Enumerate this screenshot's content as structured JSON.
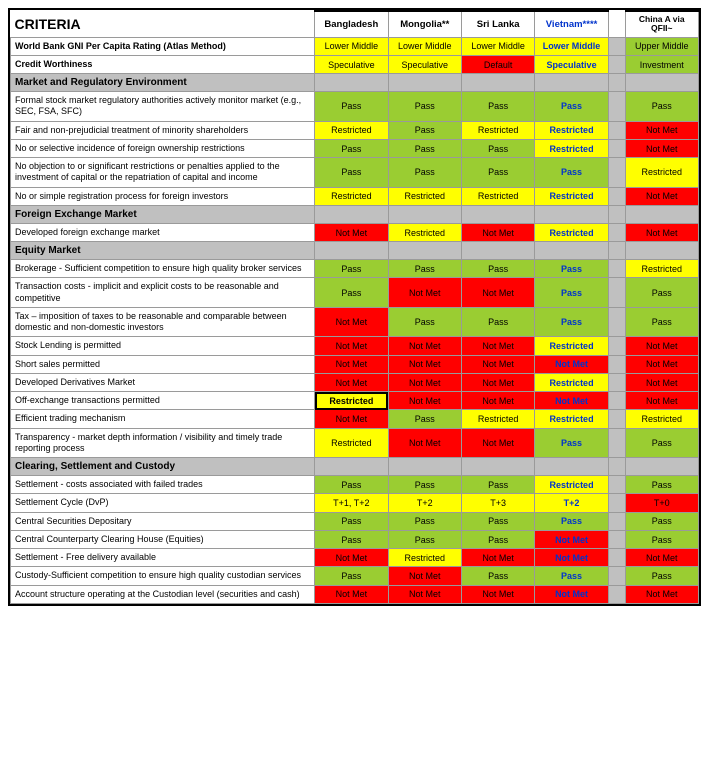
{
  "colors": {
    "green": "#9acd32",
    "yellow": "#ffff00",
    "red": "#ff0000",
    "grey": "#c0c0c0",
    "white": "#ffffff",
    "black": "#000000",
    "blue": "#0033cc"
  },
  "header": {
    "criteria": "CRITERIA",
    "countries": [
      "Bangladesh",
      "Mongolia**",
      "Sri Lanka",
      "Vietnam****"
    ],
    "china": "China A via QFII~",
    "vietnamBlue": true
  },
  "rows": [
    {
      "type": "data",
      "label": "World Bank GNI Per Capita Rating (Atlas Method)",
      "bold": true,
      "cells": [
        {
          "t": "Lower Middle",
          "bg": "yellow"
        },
        {
          "t": "Lower Middle",
          "bg": "yellow"
        },
        {
          "t": "Lower Middle",
          "bg": "yellow"
        },
        {
          "t": "Lower Middle",
          "bg": "yellow",
          "fc": "blue",
          "b": true
        }
      ],
      "china": {
        "t": "Upper Middle",
        "bg": "green"
      }
    },
    {
      "type": "data",
      "label": "Credit Worthiness",
      "bold": true,
      "cells": [
        {
          "t": "Speculative",
          "bg": "yellow"
        },
        {
          "t": "Speculative",
          "bg": "yellow"
        },
        {
          "t": "Default",
          "bg": "red"
        },
        {
          "t": "Speculative",
          "bg": "yellow",
          "fc": "blue",
          "b": true
        }
      ],
      "china": {
        "t": "Investment",
        "bg": "green"
      }
    },
    {
      "type": "section",
      "label": "Market and Regulatory Environment"
    },
    {
      "type": "data",
      "label": "Formal stock market regulatory authorities actively monitor market (e.g., SEC, FSA, SFC)",
      "cells": [
        {
          "t": "Pass",
          "bg": "green"
        },
        {
          "t": "Pass",
          "bg": "green"
        },
        {
          "t": "Pass",
          "bg": "green"
        },
        {
          "t": "Pass",
          "bg": "green",
          "fc": "blue",
          "b": true
        }
      ],
      "china": {
        "t": "Pass",
        "bg": "green"
      }
    },
    {
      "type": "data",
      "label": "Fair and non-prejudicial treatment of minority shareholders",
      "cells": [
        {
          "t": "Restricted",
          "bg": "yellow"
        },
        {
          "t": "Pass",
          "bg": "green"
        },
        {
          "t": "Restricted",
          "bg": "yellow"
        },
        {
          "t": "Restricted",
          "bg": "yellow",
          "fc": "blue",
          "b": true
        }
      ],
      "china": {
        "t": "Not Met",
        "bg": "red"
      }
    },
    {
      "type": "data",
      "label": "No or selective incidence of foreign ownership restrictions",
      "cells": [
        {
          "t": "Pass",
          "bg": "green"
        },
        {
          "t": "Pass",
          "bg": "green"
        },
        {
          "t": "Pass",
          "bg": "green"
        },
        {
          "t": "Restricted",
          "bg": "yellow",
          "fc": "blue",
          "b": true
        }
      ],
      "china": {
        "t": "Not Met",
        "bg": "red"
      }
    },
    {
      "type": "data",
      "label": "No objection to or significant restrictions or penalties applied to the investment of capital or the repatriation of capital and income",
      "cells": [
        {
          "t": "Pass",
          "bg": "green"
        },
        {
          "t": "Pass",
          "bg": "green"
        },
        {
          "t": "Pass",
          "bg": "green"
        },
        {
          "t": "Pass",
          "bg": "green",
          "fc": "blue",
          "b": true
        }
      ],
      "china": {
        "t": "Restricted",
        "bg": "yellow"
      }
    },
    {
      "type": "data",
      "label": "No or simple registration process for foreign investors",
      "cells": [
        {
          "t": "Restricted",
          "bg": "yellow"
        },
        {
          "t": "Restricted",
          "bg": "yellow"
        },
        {
          "t": "Restricted",
          "bg": "yellow"
        },
        {
          "t": "Restricted",
          "bg": "yellow",
          "fc": "blue",
          "b": true
        }
      ],
      "china": {
        "t": "Not Met",
        "bg": "red"
      }
    },
    {
      "type": "section",
      "label": "Foreign Exchange Market"
    },
    {
      "type": "data",
      "label": "Developed foreign exchange market",
      "cells": [
        {
          "t": "Not Met",
          "bg": "red"
        },
        {
          "t": "Restricted",
          "bg": "yellow"
        },
        {
          "t": "Not Met",
          "bg": "red"
        },
        {
          "t": "Restricted",
          "bg": "yellow",
          "fc": "blue",
          "b": true
        }
      ],
      "china": {
        "t": "Not Met",
        "bg": "red"
      }
    },
    {
      "type": "section",
      "label": "Equity Market"
    },
    {
      "type": "data",
      "label": "Brokerage - Sufficient competition to ensure high quality broker services",
      "cells": [
        {
          "t": "Pass",
          "bg": "green"
        },
        {
          "t": "Pass",
          "bg": "green"
        },
        {
          "t": "Pass",
          "bg": "green"
        },
        {
          "t": "Pass",
          "bg": "green",
          "fc": "blue",
          "b": true
        }
      ],
      "china": {
        "t": "Restricted",
        "bg": "yellow"
      }
    },
    {
      "type": "data",
      "label": "Transaction costs - implicit and explicit costs to be reasonable and competitive",
      "cells": [
        {
          "t": "Pass",
          "bg": "green"
        },
        {
          "t": "Not Met",
          "bg": "red"
        },
        {
          "t": "Not Met",
          "bg": "red"
        },
        {
          "t": "Pass",
          "bg": "green",
          "fc": "blue",
          "b": true
        }
      ],
      "china": {
        "t": "Pass",
        "bg": "green"
      }
    },
    {
      "type": "data",
      "label": "Tax – imposition of taxes to be reasonable and comparable between domestic and non-domestic investors",
      "cells": [
        {
          "t": "Not Met",
          "bg": "red"
        },
        {
          "t": "Pass",
          "bg": "green"
        },
        {
          "t": "Pass",
          "bg": "green"
        },
        {
          "t": "Pass",
          "bg": "green",
          "fc": "blue",
          "b": true
        }
      ],
      "china": {
        "t": "Pass",
        "bg": "green"
      }
    },
    {
      "type": "data",
      "label": "Stock Lending is permitted",
      "cells": [
        {
          "t": "Not Met",
          "bg": "red"
        },
        {
          "t": "Not Met",
          "bg": "red"
        },
        {
          "t": "Not Met",
          "bg": "red"
        },
        {
          "t": "Restricted",
          "bg": "yellow",
          "fc": "blue",
          "b": true
        }
      ],
      "china": {
        "t": "Not Met",
        "bg": "red"
      }
    },
    {
      "type": "data",
      "label": "Short sales permitted",
      "cells": [
        {
          "t": "Not Met",
          "bg": "red"
        },
        {
          "t": "Not Met",
          "bg": "red"
        },
        {
          "t": "Not Met",
          "bg": "red"
        },
        {
          "t": "Not Met",
          "bg": "red",
          "fc": "blue",
          "b": true
        }
      ],
      "china": {
        "t": "Not Met",
        "bg": "red"
      }
    },
    {
      "type": "data",
      "label": "Developed Derivatives Market",
      "cells": [
        {
          "t": "Not Met",
          "bg": "red"
        },
        {
          "t": "Not Met",
          "bg": "red"
        },
        {
          "t": "Not Met",
          "bg": "red"
        },
        {
          "t": "Restricted",
          "bg": "yellow",
          "fc": "blue",
          "b": true
        }
      ],
      "china": {
        "t": "Not Met",
        "bg": "red"
      }
    },
    {
      "type": "data",
      "label": "Off-exchange transactions permitted",
      "cells": [
        {
          "t": "Restricted",
          "bg": "yellow",
          "hl": true,
          "b": true
        },
        {
          "t": "Not Met",
          "bg": "red"
        },
        {
          "t": "Not Met",
          "bg": "red"
        },
        {
          "t": "Not Met",
          "bg": "red",
          "fc": "blue",
          "b": true
        }
      ],
      "china": {
        "t": "Not Met",
        "bg": "red"
      }
    },
    {
      "type": "data",
      "label": "Efficient trading mechanism",
      "cells": [
        {
          "t": "Not Met",
          "bg": "red"
        },
        {
          "t": "Pass",
          "bg": "green"
        },
        {
          "t": "Restricted",
          "bg": "yellow"
        },
        {
          "t": "Restricted",
          "bg": "yellow",
          "fc": "blue",
          "b": true
        }
      ],
      "china": {
        "t": "Restricted",
        "bg": "yellow"
      }
    },
    {
      "type": "data",
      "label": "Transparency - market depth information / visibility and timely trade reporting process",
      "cells": [
        {
          "t": "Restricted",
          "bg": "yellow"
        },
        {
          "t": "Not Met",
          "bg": "red"
        },
        {
          "t": "Not Met",
          "bg": "red"
        },
        {
          "t": "Pass",
          "bg": "green",
          "fc": "blue",
          "b": true
        }
      ],
      "china": {
        "t": "Pass",
        "bg": "green"
      }
    },
    {
      "type": "section",
      "label": "Clearing, Settlement and Custody"
    },
    {
      "type": "data",
      "label": "Settlement - costs associated with failed trades",
      "cells": [
        {
          "t": "Pass",
          "bg": "green"
        },
        {
          "t": "Pass",
          "bg": "green"
        },
        {
          "t": "Pass",
          "bg": "green"
        },
        {
          "t": "Restricted",
          "bg": "yellow",
          "fc": "blue",
          "b": true
        }
      ],
      "china": {
        "t": "Pass",
        "bg": "green"
      }
    },
    {
      "type": "data",
      "label": "Settlement Cycle (DvP)",
      "cells": [
        {
          "t": "T+1, T+2",
          "bg": "yellow"
        },
        {
          "t": "T+2",
          "bg": "yellow"
        },
        {
          "t": "T+3",
          "bg": "yellow"
        },
        {
          "t": "T+2",
          "bg": "yellow",
          "fc": "blue",
          "b": true
        }
      ],
      "china": {
        "t": "T+0",
        "bg": "red"
      }
    },
    {
      "type": "data",
      "label": "Central Securities Depositary",
      "cells": [
        {
          "t": "Pass",
          "bg": "green"
        },
        {
          "t": "Pass",
          "bg": "green"
        },
        {
          "t": "Pass",
          "bg": "green"
        },
        {
          "t": "Pass",
          "bg": "green",
          "fc": "blue",
          "b": true
        }
      ],
      "china": {
        "t": "Pass",
        "bg": "green"
      }
    },
    {
      "type": "data",
      "label": "Central Counterparty Clearing House (Equities)",
      "cells": [
        {
          "t": "Pass",
          "bg": "green"
        },
        {
          "t": "Pass",
          "bg": "green"
        },
        {
          "t": "Pass",
          "bg": "green"
        },
        {
          "t": "Not Met",
          "bg": "red",
          "fc": "blue",
          "b": true
        }
      ],
      "china": {
        "t": "Pass",
        "bg": "green"
      }
    },
    {
      "type": "data",
      "label": "Settlement - Free delivery available",
      "cells": [
        {
          "t": "Not Met",
          "bg": "red"
        },
        {
          "t": "Restricted",
          "bg": "yellow"
        },
        {
          "t": "Not Met",
          "bg": "red"
        },
        {
          "t": "Not Met",
          "bg": "red",
          "fc": "blue",
          "b": true
        }
      ],
      "china": {
        "t": "Not Met",
        "bg": "red"
      }
    },
    {
      "type": "data",
      "label": "Custody-Sufficient competition to ensure high quality custodian services",
      "cells": [
        {
          "t": "Pass",
          "bg": "green"
        },
        {
          "t": "Not Met",
          "bg": "red"
        },
        {
          "t": "Pass",
          "bg": "green"
        },
        {
          "t": "Pass",
          "bg": "green",
          "fc": "blue",
          "b": true
        }
      ],
      "china": {
        "t": "Pass",
        "bg": "green"
      }
    },
    {
      "type": "data",
      "label": "Account structure operating at the Custodian level (securities and cash)",
      "cells": [
        {
          "t": "Not Met",
          "bg": "red"
        },
        {
          "t": "Not Met",
          "bg": "red"
        },
        {
          "t": "Not Met",
          "bg": "red"
        },
        {
          "t": "Not Met",
          "bg": "red",
          "fc": "blue",
          "b": true
        }
      ],
      "china": {
        "t": "Not Met",
        "bg": "red"
      }
    }
  ]
}
